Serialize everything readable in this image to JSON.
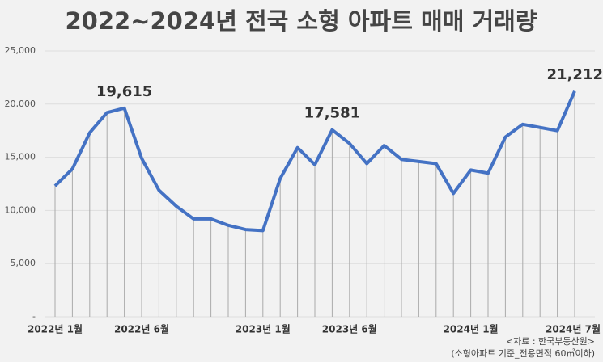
{
  "chart_data": {
    "type": "line",
    "title": "2022~2024년 전국 소형 아파트 매매 거래량",
    "categories": [
      "2022년 1월",
      null,
      null,
      null,
      null,
      "2022년 6월",
      null,
      null,
      null,
      null,
      null,
      null,
      "2023년 1월",
      null,
      null,
      null,
      null,
      "2023년 6월",
      null,
      null,
      null,
      null,
      null,
      null,
      "2024년 1월",
      null,
      null,
      null,
      null,
      null,
      "2024년 7월"
    ],
    "series": [
      {
        "name": "소형 아파트 매매 거래량",
        "color": "#4472c4",
        "values": [
          12300,
          13900,
          17300,
          19200,
          19615,
          14900,
          11900,
          10400,
          9200,
          9200,
          8600,
          8200,
          8100,
          13000,
          15900,
          14300,
          17581,
          16300,
          14400,
          16100,
          14800,
          14600,
          14400,
          11600,
          13800,
          13500,
          16900,
          18100,
          17800,
          17500,
          21212
        ],
        "value_labels": [
          null,
          null,
          null,
          null,
          "19,615",
          null,
          null,
          null,
          null,
          null,
          null,
          null,
          null,
          null,
          null,
          null,
          "17,581",
          null,
          null,
          null,
          null,
          null,
          null,
          null,
          null,
          null,
          null,
          null,
          null,
          null,
          "21,212"
        ]
      }
    ],
    "ylim": [
      0,
      25000
    ],
    "yticks": [
      {
        "value": 0,
        "label": "-"
      },
      {
        "value": 5000,
        "label": "5,000"
      },
      {
        "value": 10000,
        "label": "10,000"
      },
      {
        "value": 15000,
        "label": "15,000"
      },
      {
        "value": 20000,
        "label": "20,000"
      },
      {
        "value": 25000,
        "label": "25,000"
      }
    ],
    "grid": true,
    "source": "<자료 : 한국부동산원>",
    "note": "(소형아파트 기준_전용면적 60㎡이하)"
  }
}
